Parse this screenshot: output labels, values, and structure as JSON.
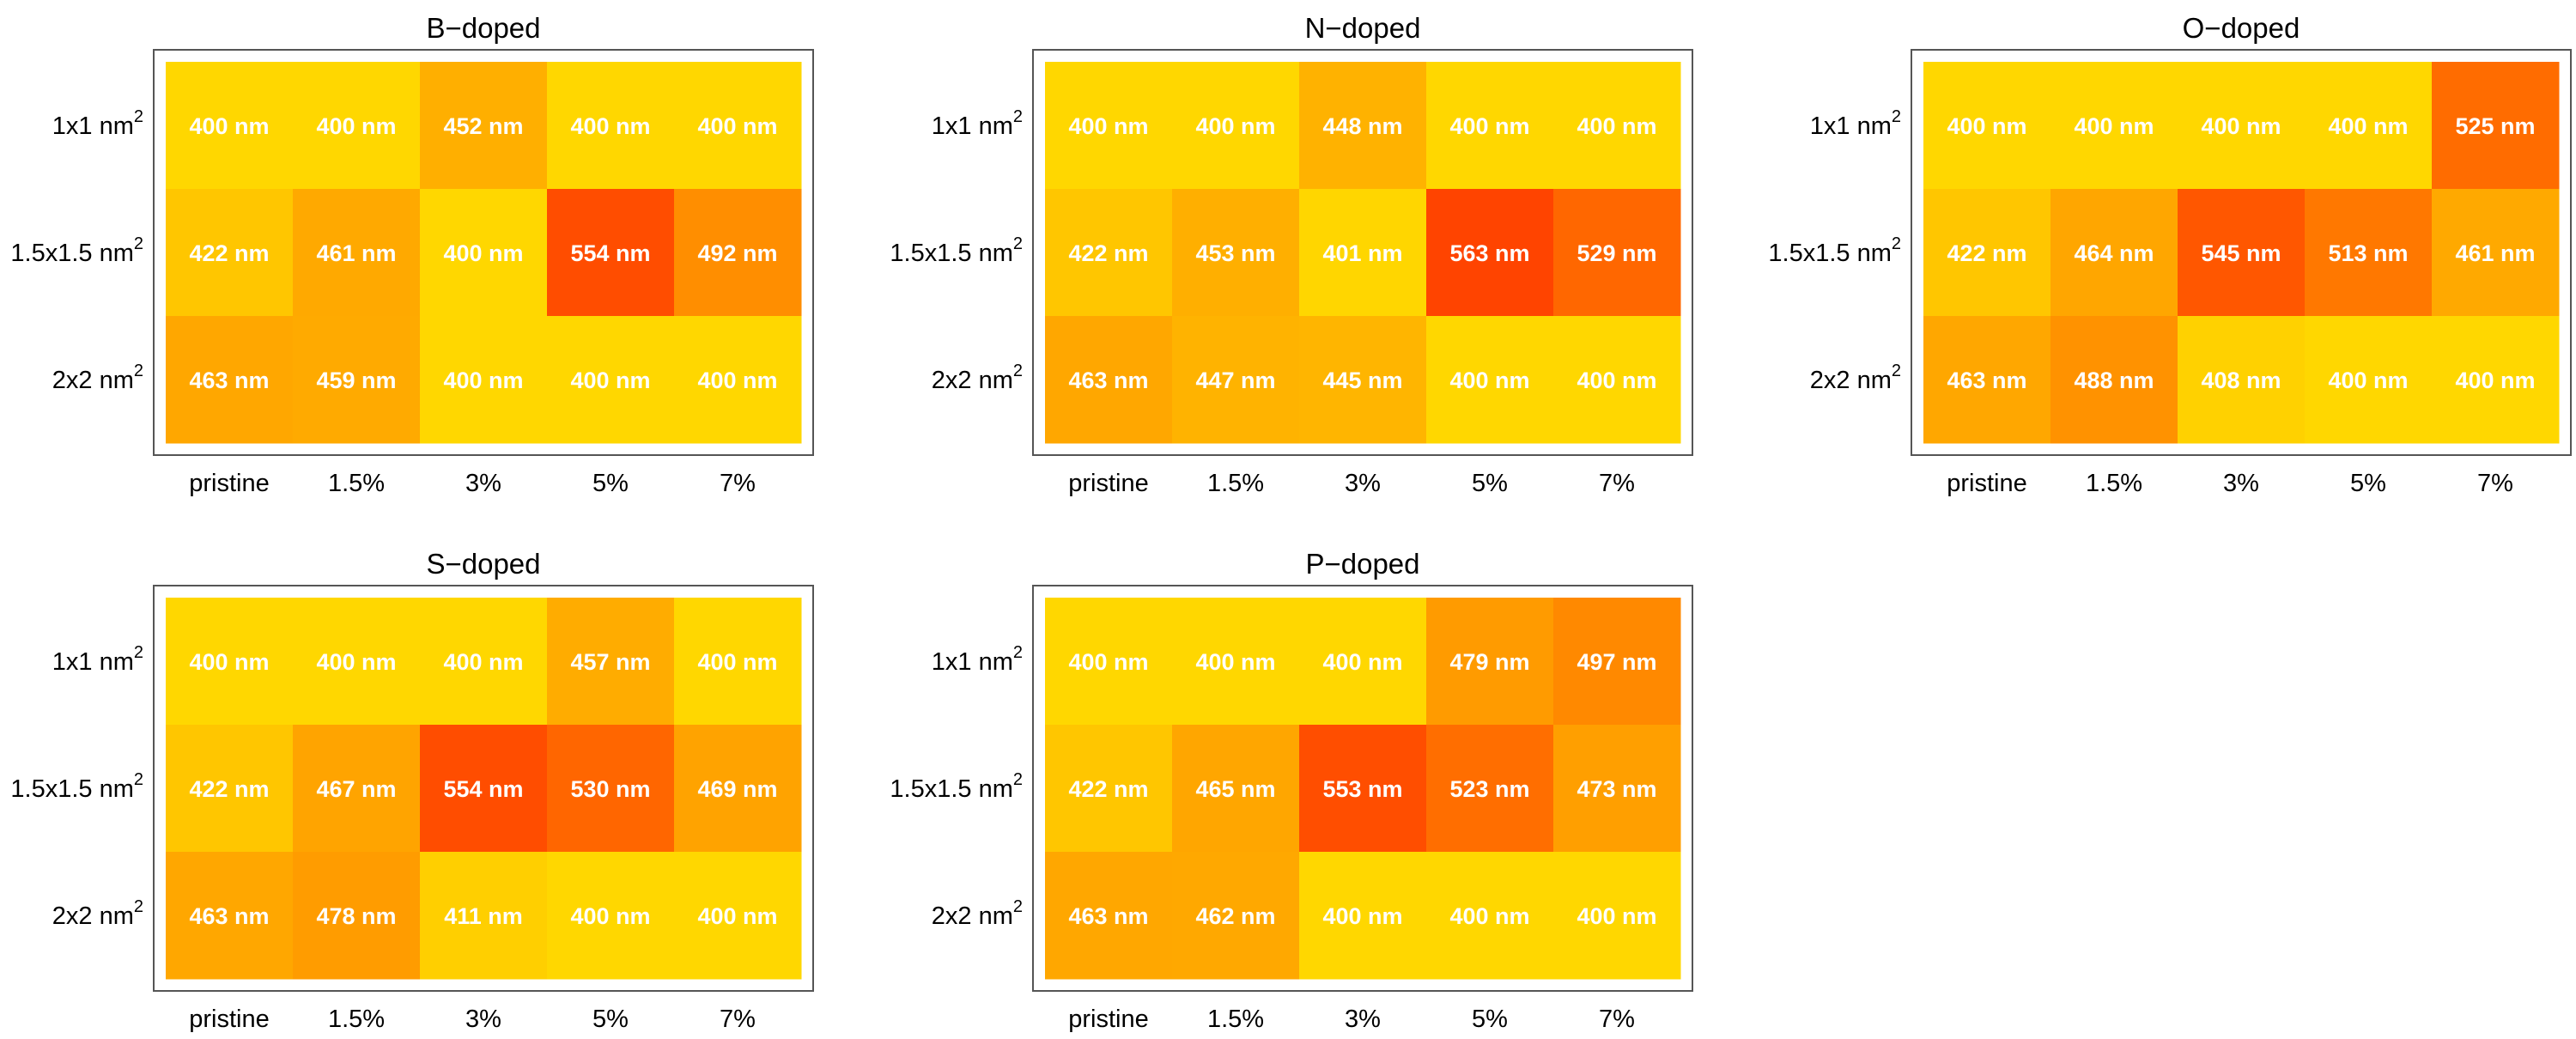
{
  "chart_data": [
    {
      "type": "heatmap",
      "title": "B−doped",
      "rows": [
        "1x1 nm",
        "1.5x1.5 nm",
        "2x2 nm"
      ],
      "row_unit_superscript": "2",
      "columns": [
        "pristine",
        "1.5%",
        "3%",
        "5%",
        "7%"
      ],
      "value_suffix": " nm",
      "color_range": [
        400,
        563
      ],
      "values": [
        [
          400,
          400,
          452,
          400,
          400
        ],
        [
          422,
          461,
          400,
          554,
          492
        ],
        [
          463,
          459,
          400,
          400,
          400
        ]
      ]
    },
    {
      "type": "heatmap",
      "title": "N−doped",
      "rows": [
        "1x1 nm",
        "1.5x1.5 nm",
        "2x2 nm"
      ],
      "row_unit_superscript": "2",
      "columns": [
        "pristine",
        "1.5%",
        "3%",
        "5%",
        "7%"
      ],
      "value_suffix": " nm",
      "color_range": [
        400,
        563
      ],
      "values": [
        [
          400,
          400,
          448,
          400,
          400
        ],
        [
          422,
          453,
          401,
          563,
          529
        ],
        [
          463,
          447,
          445,
          400,
          400
        ]
      ]
    },
    {
      "type": "heatmap",
      "title": "O−doped",
      "rows": [
        "1x1 nm",
        "1.5x1.5 nm",
        "2x2 nm"
      ],
      "row_unit_superscript": "2",
      "columns": [
        "pristine",
        "1.5%",
        "3%",
        "5%",
        "7%"
      ],
      "value_suffix": " nm",
      "color_range": [
        400,
        563
      ],
      "values": [
        [
          400,
          400,
          400,
          400,
          525
        ],
        [
          422,
          464,
          545,
          513,
          461
        ],
        [
          463,
          488,
          408,
          400,
          400
        ]
      ]
    },
    {
      "type": "heatmap",
      "title": "S−doped",
      "rows": [
        "1x1 nm",
        "1.5x1.5 nm",
        "2x2 nm"
      ],
      "row_unit_superscript": "2",
      "columns": [
        "pristine",
        "1.5%",
        "3%",
        "5%",
        "7%"
      ],
      "value_suffix": " nm",
      "color_range": [
        400,
        563
      ],
      "values": [
        [
          400,
          400,
          400,
          457,
          400
        ],
        [
          422,
          467,
          554,
          530,
          469
        ],
        [
          463,
          478,
          411,
          400,
          400
        ]
      ]
    },
    {
      "type": "heatmap",
      "title": "P−doped",
      "rows": [
        "1x1 nm",
        "1.5x1.5 nm",
        "2x2 nm"
      ],
      "row_unit_superscript": "2",
      "columns": [
        "pristine",
        "1.5%",
        "3%",
        "5%",
        "7%"
      ],
      "value_suffix": " nm",
      "color_range": [
        400,
        563
      ],
      "values": [
        [
          400,
          400,
          400,
          479,
          497
        ],
        [
          422,
          465,
          553,
          523,
          473
        ],
        [
          463,
          462,
          400,
          400,
          400
        ]
      ]
    }
  ],
  "colors": {
    "low": "#ffd700",
    "mid": "#ff9900",
    "high": "#ff4400",
    "text": "#ffffff"
  }
}
